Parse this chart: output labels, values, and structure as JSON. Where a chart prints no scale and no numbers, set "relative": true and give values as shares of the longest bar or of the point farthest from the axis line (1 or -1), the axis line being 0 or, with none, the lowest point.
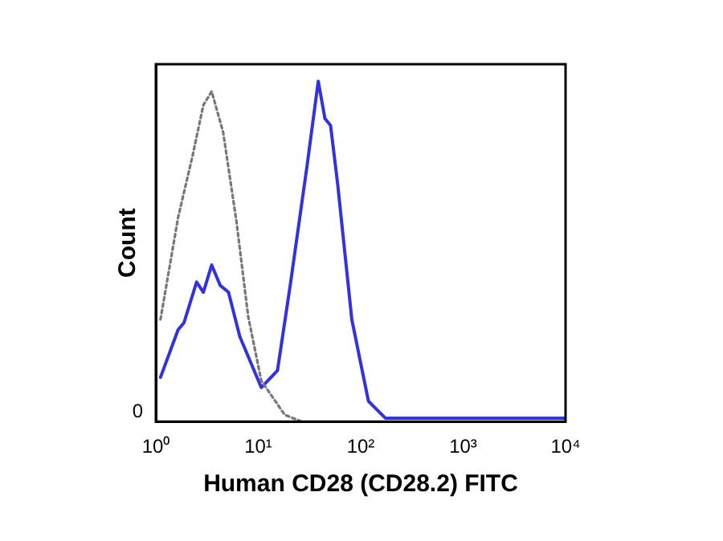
{
  "chart_data": {
    "type": "line",
    "xlabel": "Human CD28 (CD28.2) FITC",
    "ylabel": "Count",
    "relative": true,
    "log": "x",
    "xlim": [
      1,
      10000
    ],
    "xticks": [
      {
        "value": 1,
        "label": "10⁰"
      },
      {
        "value": 10,
        "label": "10¹"
      },
      {
        "value": 100,
        "label": "10²"
      },
      {
        "value": 1000,
        "label": "10³"
      },
      {
        "value": 10000,
        "label": "10⁴"
      }
    ],
    "annotations": [
      "0"
    ],
    "grid": false,
    "legend": false,
    "marker": "none",
    "series": [
      {
        "color": "#777777",
        "line_style": "dotted",
        "x": [
          1.11,
          1.65,
          2.28,
          2.91,
          3.51,
          4.54,
          6.11,
          7.96,
          10.7,
          18.1,
          26.4
        ],
        "values": [
          0.3,
          0.6,
          0.78,
          0.93,
          0.97,
          0.85,
          0.59,
          0.31,
          0.12,
          0.02,
          0.0
        ]
      },
      {
        "color": "#3333dd",
        "line_style": "solid",
        "x": [
          1.11,
          1.65,
          1.88,
          2.5,
          2.91,
          3.51,
          4.25,
          5.12,
          6.6,
          10.7,
          15.4,
          20.5,
          29.9,
          38.5,
          44.8,
          50.8,
          59.5,
          81.9,
          119,
          174,
          889,
          10000
        ],
        "values": [
          0.13,
          0.27,
          0.29,
          0.41,
          0.38,
          0.46,
          0.4,
          0.38,
          0.25,
          0.1,
          0.15,
          0.4,
          0.75,
          1.0,
          0.89,
          0.87,
          0.7,
          0.3,
          0.06,
          0.01,
          0.01,
          0.01
        ]
      }
    ]
  }
}
